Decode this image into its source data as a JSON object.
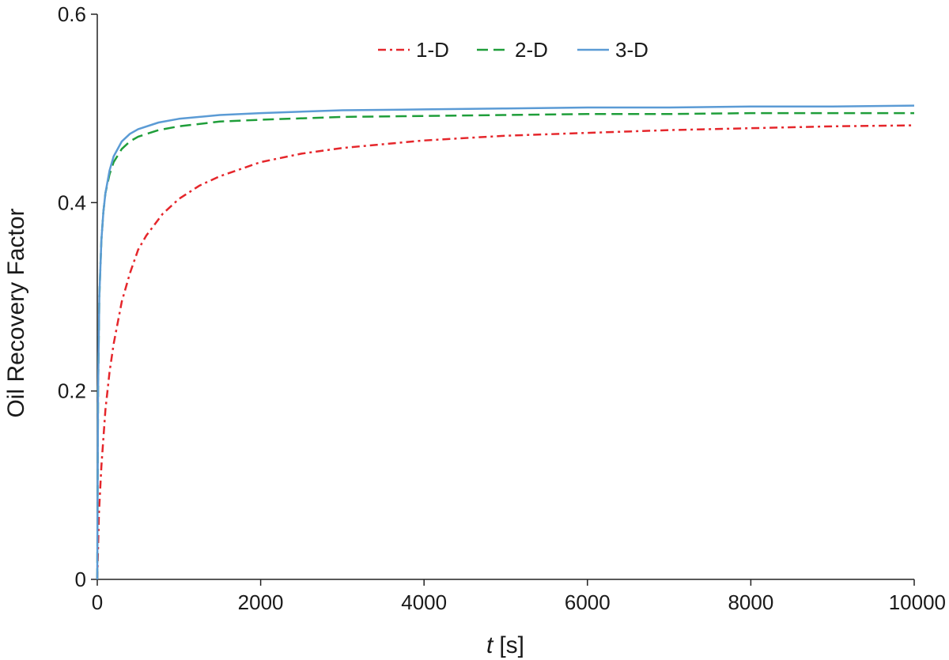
{
  "chart_data": {
    "type": "line",
    "title": "",
    "xlabel_italic": "t",
    "xlabel_unit": "[s]",
    "ylabel": "Oil Recovery Factor",
    "xlim": [
      0,
      10000
    ],
    "ylim": [
      0,
      0.6
    ],
    "x_ticks": [
      "0",
      "2000",
      "4000",
      "6000",
      "8000",
      "10000"
    ],
    "y_ticks": [
      "0",
      "0.2",
      "0.4",
      "0.6"
    ],
    "grid": false,
    "legend_position": "top-center",
    "series": [
      {
        "name": "1-D",
        "color": "#e5262b",
        "dash": "dash-dot",
        "x": [
          0,
          20,
          50,
          100,
          150,
          200,
          300,
          400,
          500,
          600,
          800,
          1000,
          1250,
          1500,
          2000,
          2500,
          3000,
          4000,
          5000,
          6000,
          7000,
          8000,
          9000,
          10000
        ],
        "values": [
          0,
          0.07,
          0.12,
          0.18,
          0.22,
          0.25,
          0.295,
          0.325,
          0.35,
          0.365,
          0.388,
          0.404,
          0.418,
          0.428,
          0.443,
          0.452,
          0.458,
          0.466,
          0.471,
          0.474,
          0.477,
          0.479,
          0.481,
          0.482
        ]
      },
      {
        "name": "2-D",
        "color": "#1f9e3a",
        "dash": "dashed",
        "x": [
          0,
          10,
          25,
          50,
          75,
          100,
          150,
          200,
          300,
          400,
          500,
          750,
          1000,
          1500,
          2000,
          3000,
          4000,
          5000,
          6000,
          7000,
          8000,
          9000,
          10000
        ],
        "values": [
          0,
          0.2,
          0.3,
          0.36,
          0.39,
          0.41,
          0.43,
          0.443,
          0.457,
          0.465,
          0.47,
          0.477,
          0.481,
          0.486,
          0.488,
          0.491,
          0.492,
          0.493,
          0.494,
          0.494,
          0.495,
          0.495,
          0.495
        ]
      },
      {
        "name": "3-D",
        "color": "#5b9bd5",
        "dash": "solid",
        "x": [
          0,
          10,
          25,
          50,
          75,
          100,
          150,
          200,
          300,
          400,
          500,
          750,
          1000,
          1500,
          2000,
          3000,
          4000,
          5000,
          6000,
          7000,
          8000,
          9000,
          10000
        ],
        "values": [
          0,
          0.2,
          0.3,
          0.36,
          0.39,
          0.41,
          0.434,
          0.449,
          0.465,
          0.473,
          0.478,
          0.485,
          0.489,
          0.493,
          0.495,
          0.498,
          0.499,
          0.5,
          0.501,
          0.501,
          0.502,
          0.502,
          0.503
        ]
      }
    ]
  }
}
